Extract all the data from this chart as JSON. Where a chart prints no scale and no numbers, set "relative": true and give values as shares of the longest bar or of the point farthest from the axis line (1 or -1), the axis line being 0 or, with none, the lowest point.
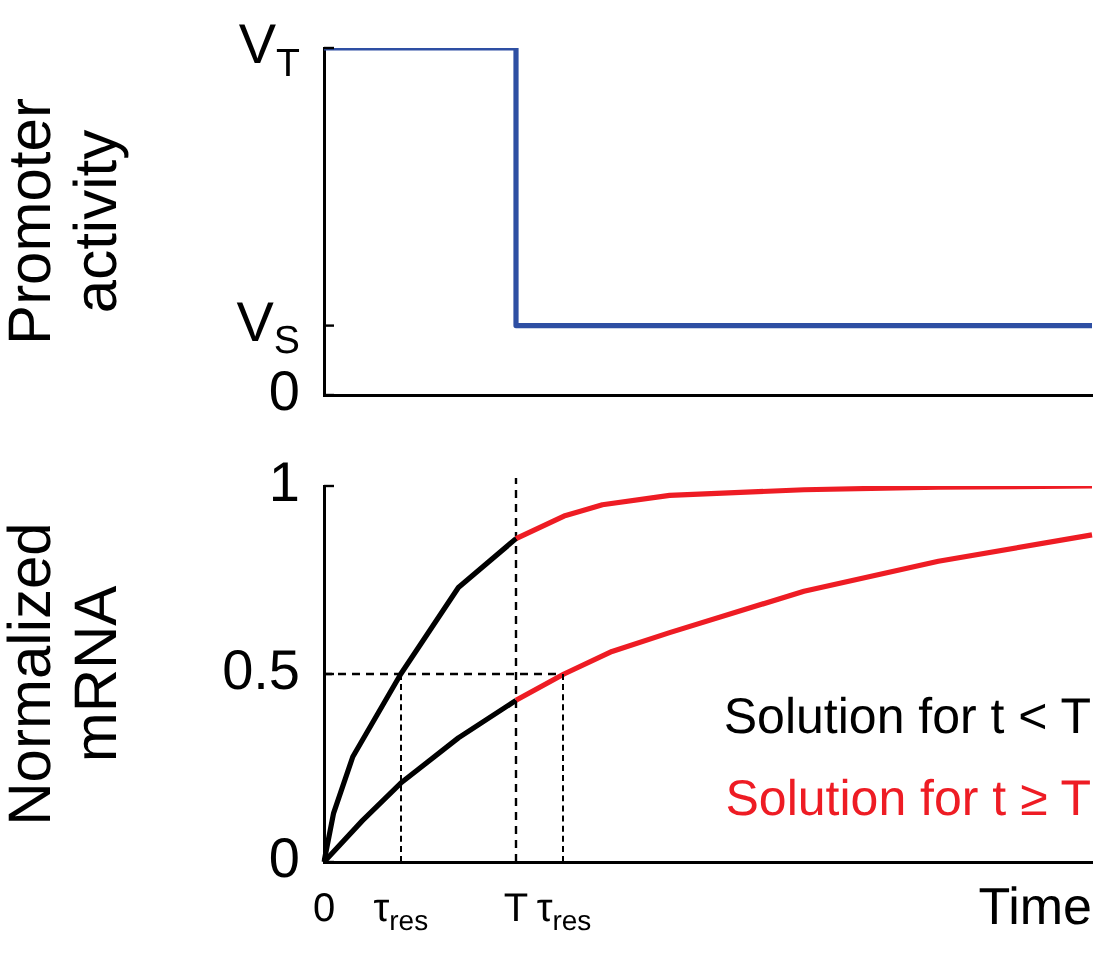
{
  "chart_data": [
    {
      "type": "step",
      "ylabel": "Promoter activity",
      "relative": true,
      "color": "#2e4fa3",
      "categories": [
        null,
        null,
        null,
        null,
        null,
        null,
        null,
        null,
        null,
        null,
        null,
        null,
        null,
        null,
        null,
        null,
        null,
        null,
        null,
        null,
        null,
        null,
        null,
        null,
        null,
        null,
        null,
        null,
        null,
        null,
        null,
        null,
        null,
        null,
        null,
        null,
        null,
        null,
        null,
        null,
        null,
        null,
        null,
        null,
        null,
        null,
        null,
        null,
        null,
        null,
        null,
        null,
        null,
        null,
        null,
        null,
        null,
        null,
        null,
        null,
        null,
        null,
        null,
        null,
        null,
        null,
        null,
        null,
        null,
        null,
        null,
        null,
        null,
        null,
        null,
        null,
        null,
        null,
        null,
        null,
        null
      ],
      "values": [
        1,
        null,
        null,
        null,
        null,
        null,
        null,
        null,
        null,
        null,
        null,
        null,
        null,
        null,
        null,
        null,
        null,
        null,
        null,
        null,
        0.2,
        null,
        null,
        null,
        null,
        null,
        null,
        null,
        null,
        null,
        null,
        null,
        null,
        null,
        null,
        null,
        null,
        null,
        null,
        null,
        null,
        null,
        null,
        null,
        null,
        null,
        null,
        null,
        null,
        null,
        null,
        null,
        null,
        null,
        null,
        null,
        null,
        null,
        null,
        null,
        null,
        null,
        null,
        null,
        null,
        null,
        null,
        null,
        null,
        null,
        null,
        null,
        null,
        null,
        null,
        null,
        null,
        null,
        null,
        null,
        0.2
      ],
      "annotations": [
        "V$_{T}$",
        "V$_{S}$",
        "0"
      ],
      "grid": false,
      "legend": false,
      "marker": "none"
    },
    {
      "type": "line",
      "xlabel": "Time",
      "ylabel": "Normalized mRNA",
      "categories": [
        "0",
        null,
        null,
        null,
        null,
        null,
        null,
        null,
        "τ$_{res}$",
        null,
        null,
        null,
        null,
        null,
        null,
        null,
        null,
        null,
        null,
        null,
        "T",
        null,
        null,
        null,
        null,
        "τ$_{res}$",
        null,
        null,
        null,
        null,
        null,
        null,
        null,
        null,
        null,
        null,
        null,
        null,
        null,
        null,
        null,
        null,
        null,
        null,
        null,
        null,
        null,
        null,
        null,
        null,
        null,
        null,
        null,
        null,
        null,
        null,
        null,
        null,
        null,
        null,
        null,
        null,
        null,
        null,
        null,
        null,
        null,
        null,
        null,
        null,
        null,
        null,
        null,
        null,
        null,
        null,
        null,
        null,
        null,
        null,
        null
      ],
      "ylim": [
        0,
        1
      ],
      "yticks": [
        0,
        0.5,
        1
      ],
      "grid": false,
      "legend": "right",
      "marker": "none",
      "ref_lines": [
        {
          "axis": "x",
          "value": "T",
          "line_style": "dashed",
          "color": "#000000"
        }
      ],
      "series": [
        {
          "name": "Solution for t < T",
          "color": "#000000",
          "values": [
            0,
            0.13,
            null,
            0.28,
            null,
            null,
            null,
            null,
            0.5,
            null,
            null,
            null,
            null,
            null,
            0.73,
            null,
            null,
            null,
            null,
            null,
            0.86,
            null,
            null,
            null,
            null,
            null,
            null,
            null,
            null,
            null,
            null,
            null,
            null,
            null,
            null,
            null,
            null,
            null,
            null,
            null,
            null,
            null,
            null,
            null,
            null,
            null,
            null,
            null,
            null,
            null,
            null,
            null,
            null,
            null,
            null,
            null,
            null,
            null,
            null,
            null,
            null,
            null,
            null,
            null,
            null,
            null,
            null,
            null,
            null,
            null,
            null,
            null,
            null,
            null,
            null,
            null,
            null,
            null,
            null,
            null,
            null
          ]
        },
        {
          "color": "#000000",
          "values": [
            0,
            null,
            null,
            null,
            0.11,
            null,
            null,
            null,
            0.21,
            null,
            null,
            null,
            null,
            null,
            0.33,
            null,
            null,
            null,
            null,
            null,
            0.43,
            null,
            null,
            null,
            null,
            null,
            null,
            null,
            null,
            null,
            null,
            null,
            null,
            null,
            null,
            null,
            null,
            null,
            null,
            null,
            null,
            null,
            null,
            null,
            null,
            null,
            null,
            null,
            null,
            null,
            null,
            null,
            null,
            null,
            null,
            null,
            null,
            null,
            null,
            null,
            null,
            null,
            null,
            null,
            null,
            null,
            null,
            null,
            null,
            null,
            null,
            null,
            null,
            null,
            null,
            null,
            null,
            null,
            null,
            null,
            null
          ]
        },
        {
          "name": "Solution for t ≥ T",
          "color": "#ee1c24",
          "values": [
            null,
            null,
            null,
            null,
            null,
            null,
            null,
            null,
            null,
            null,
            null,
            null,
            null,
            null,
            null,
            null,
            null,
            null,
            null,
            null,
            0.86,
            null,
            null,
            null,
            null,
            0.92,
            null,
            null,
            null,
            0.95,
            null,
            null,
            null,
            null,
            null,
            null,
            0.975,
            null,
            null,
            null,
            null,
            null,
            null,
            null,
            null,
            null,
            null,
            null,
            null,
            null,
            0.99,
            null,
            null,
            null,
            null,
            null,
            null,
            null,
            null,
            null,
            null,
            null,
            null,
            null,
            0.997,
            null,
            null,
            null,
            null,
            null,
            null,
            null,
            null,
            null,
            null,
            null,
            null,
            null,
            null,
            null,
            1
          ]
        },
        {
          "color": "#ee1c24",
          "values": [
            null,
            null,
            null,
            null,
            null,
            null,
            null,
            null,
            null,
            null,
            null,
            null,
            null,
            null,
            null,
            null,
            null,
            null,
            null,
            null,
            0.43,
            null,
            null,
            null,
            null,
            0.5,
            null,
            null,
            null,
            null,
            0.56,
            null,
            null,
            null,
            null,
            null,
            0.61,
            null,
            null,
            null,
            null,
            null,
            null,
            null,
            null,
            null,
            null,
            null,
            null,
            null,
            0.72,
            null,
            null,
            null,
            null,
            null,
            null,
            null,
            null,
            null,
            null,
            null,
            null,
            null,
            0.8,
            null,
            null,
            null,
            null,
            null,
            null,
            null,
            null,
            null,
            null,
            null,
            null,
            null,
            null,
            null,
            0.87
          ]
        },
        {
          "color": "#000000",
          "line_style": "dashed",
          "values": [
            0.5,
            null,
            null,
            null,
            null,
            null,
            null,
            null,
            null,
            null,
            null,
            null,
            null,
            null,
            null,
            null,
            null,
            null,
            null,
            null,
            null,
            null,
            null,
            null,
            null,
            0.5,
            null,
            null,
            null,
            null,
            null,
            null,
            null,
            null,
            null,
            null,
            null,
            null,
            null,
            null,
            null,
            null,
            null,
            null,
            null,
            null,
            null,
            null,
            null,
            null,
            null,
            null,
            null,
            null,
            null,
            null,
            null,
            null,
            null,
            null,
            null,
            null,
            null,
            null,
            null,
            null,
            null,
            null,
            null,
            null,
            null,
            null,
            null,
            null,
            null,
            null,
            null,
            null,
            null,
            null,
            null
          ]
        }
      ]
    }
  ]
}
